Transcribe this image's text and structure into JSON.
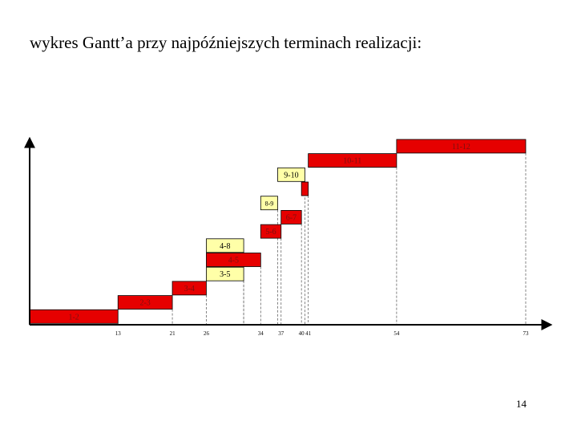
{
  "page": {
    "title": "wykres Gantt’a przy najpóźniejszych terminach realizacji:",
    "page_number": "14"
  },
  "colors": {
    "critical": "#e60000",
    "slack": "#ffffa8",
    "critical_label": "#7a1010",
    "slack_label": "#000000",
    "axis": "#000000"
  },
  "chart_data": {
    "type": "gantt",
    "title": "",
    "xlabel": "",
    "ylabel": "",
    "xlim": [
      0,
      73
    ],
    "ticks": [
      13,
      21,
      26,
      34,
      37,
      40,
      41,
      54,
      73
    ],
    "tasks": [
      {
        "label": "1-2",
        "start": 0,
        "end": 13,
        "critical": true
      },
      {
        "label": "2-3",
        "start": 13,
        "end": 21,
        "critical": true
      },
      {
        "label": "3-4",
        "start": 21,
        "end": 26,
        "critical": true
      },
      {
        "label": "3-5",
        "start": 26,
        "end": 31.5,
        "critical": false
      },
      {
        "label": "4-5",
        "start": 26,
        "end": 34,
        "critical": true
      },
      {
        "label": "4-8",
        "start": 26,
        "end": 31.5,
        "critical": false
      },
      {
        "label": "5-6",
        "start": 34,
        "end": 37,
        "critical": true
      },
      {
        "label": "6-7",
        "start": 37,
        "end": 40,
        "critical": true
      },
      {
        "label": "8-9",
        "start": 34,
        "end": 36.5,
        "critical": false
      },
      {
        "label": "",
        "start": 40,
        "end": 41,
        "critical": true
      },
      {
        "label": "9-10",
        "start": 36.5,
        "end": 40.5,
        "critical": false
      },
      {
        "label": "10-11",
        "start": 41,
        "end": 54,
        "critical": true
      },
      {
        "label": "11-12",
        "start": 54,
        "end": 73,
        "critical": true
      }
    ]
  }
}
